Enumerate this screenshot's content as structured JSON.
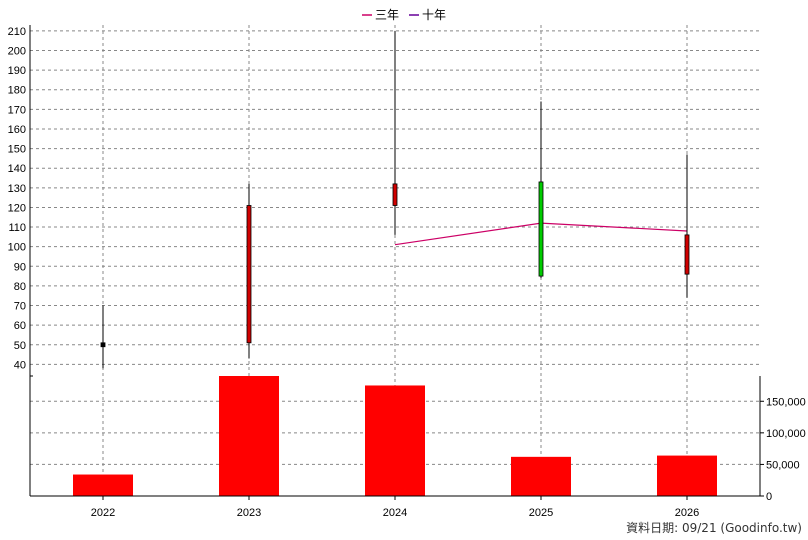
{
  "legend": [
    {
      "label": "三年",
      "color": "#cc0066"
    },
    {
      "label": "十年",
      "color": "#660099"
    }
  ],
  "footer_text": "資料日期: 09/21  (Goodinfo.tw)",
  "chart_data": [
    {
      "type": "candlestick",
      "categories": [
        "2022",
        "2023",
        "2024",
        "2025",
        "2026"
      ],
      "ylim": [
        30,
        213
      ],
      "yticks": [
        40,
        50,
        60,
        70,
        80,
        90,
        100,
        110,
        120,
        130,
        140,
        150,
        160,
        170,
        180,
        190,
        200,
        210
      ],
      "grid": true,
      "candles": [
        {
          "x": "2022",
          "open": 49,
          "close": 51,
          "high": 70,
          "low": 38,
          "color": "#000000"
        },
        {
          "x": "2023",
          "open": 51,
          "close": 121,
          "high": 132,
          "low": 43,
          "color": "#d00000"
        },
        {
          "x": "2024",
          "open": 121,
          "close": 132,
          "high": 210,
          "low": 106,
          "color": "#d00000"
        },
        {
          "x": "2025",
          "open": 133,
          "close": 85,
          "high": 174,
          "low": 84,
          "color": "#00cc00"
        },
        {
          "x": "2026",
          "open": 86,
          "close": 106,
          "high": 147,
          "low": 74,
          "color": "#d00000"
        }
      ],
      "series": [
        {
          "name": "三年",
          "x": [
            "2024",
            "2025",
            "2026"
          ],
          "values": [
            101,
            112,
            108
          ],
          "color": "#cc0066"
        }
      ]
    },
    {
      "type": "bar",
      "categories": [
        "2022",
        "2023",
        "2024",
        "2025",
        "2026"
      ],
      "values": [
        34000,
        190000,
        175000,
        62000,
        64000
      ],
      "ylim": [
        0,
        190000
      ],
      "yticks": [
        0,
        50000,
        100000,
        150000
      ],
      "ytick_labels": [
        "0",
        "50,000",
        "100,000",
        "150,000"
      ],
      "color": "#ff0000",
      "grid": true
    }
  ]
}
